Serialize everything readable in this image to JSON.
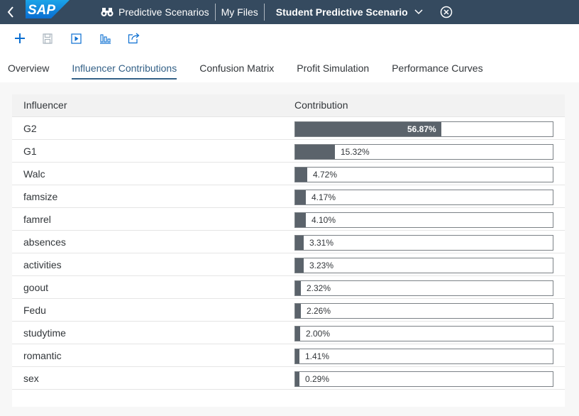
{
  "shell": {
    "logo_text": "SAP",
    "nav": [
      "Predictive Scenarios",
      "My Files"
    ],
    "title": "Student Predictive Scenario"
  },
  "toolbar": {
    "icons": [
      "add-icon",
      "save-icon",
      "run-icon",
      "settings-icon",
      "export-icon"
    ]
  },
  "tabs": [
    {
      "label": "Overview",
      "active": false
    },
    {
      "label": "Influencer Contributions",
      "active": true
    },
    {
      "label": "Confusion Matrix",
      "active": false
    },
    {
      "label": "Profit Simulation",
      "active": false
    },
    {
      "label": "Performance Curves",
      "active": false
    }
  ],
  "table": {
    "col_influencer": "Influencer",
    "col_contribution": "Contribution",
    "rows": [
      {
        "name": "G2",
        "value": 56.87,
        "label": "56.87%"
      },
      {
        "name": "G1",
        "value": 15.32,
        "label": "15.32%"
      },
      {
        "name": "Walc",
        "value": 4.72,
        "label": "4.72%"
      },
      {
        "name": "famsize",
        "value": 4.17,
        "label": "4.17%"
      },
      {
        "name": "famrel",
        "value": 4.1,
        "label": "4.10%"
      },
      {
        "name": "absences",
        "value": 3.31,
        "label": "3.31%"
      },
      {
        "name": "activities",
        "value": 3.23,
        "label": "3.23%"
      },
      {
        "name": "goout",
        "value": 2.32,
        "label": "2.32%"
      },
      {
        "name": "Fedu",
        "value": 2.26,
        "label": "2.26%"
      },
      {
        "name": "studytime",
        "value": 2.0,
        "label": "2.00%"
      },
      {
        "name": "romantic",
        "value": 1.41,
        "label": "1.41%"
      },
      {
        "name": "sex",
        "value": 0.29,
        "label": "0.29%"
      }
    ]
  },
  "colors": {
    "shell_bg": "#354a5f",
    "bar_fill": "#5b636b",
    "active_tab": "#346187"
  }
}
